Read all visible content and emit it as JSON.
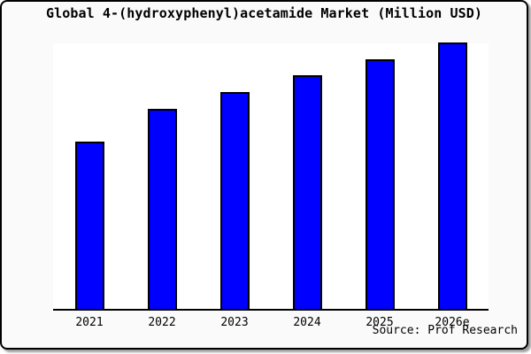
{
  "title": "Global 4-(hydroxyphenyl)acetamide Market (Million USD)",
  "source_note": "Source: Prof Research",
  "colors": {
    "bar_fill": "#0000ff",
    "bar_border": "#000000",
    "frame_background": "#fafafa",
    "plot_background": "#ffffff",
    "axis": "#000000",
    "text": "#000000"
  },
  "chart_data": {
    "type": "bar",
    "title": "Global 4-(hydroxyphenyl)acetamide Market (Million USD)",
    "categories": [
      "2021",
      "2022",
      "2023",
      "2024",
      "2025",
      "2026e"
    ],
    "values_relative_pct_of_max": [
      62.8,
      75.1,
      81.4,
      87.7,
      93.7,
      100
    ],
    "xlabel": "",
    "ylabel": "",
    "value_axis_visible": false,
    "value_labels_visible": false,
    "gridlines": false,
    "legend": false,
    "source_note": "Source: Prof Research"
  }
}
